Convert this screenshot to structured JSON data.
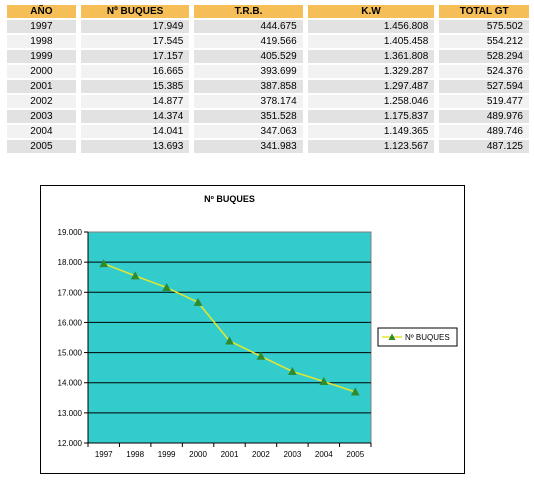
{
  "table": {
    "headers": [
      "AÑO",
      "Nº BUQUES",
      "T.R.B.",
      "K.W",
      "TOTAL GT"
    ],
    "rows": [
      [
        "1997",
        "17.949",
        "444.675",
        "1.456.808",
        "575.502"
      ],
      [
        "1998",
        "17.545",
        "419.566",
        "1.405.458",
        "554.212"
      ],
      [
        "1999",
        "17.157",
        "405.529",
        "1.361.808",
        "528.294"
      ],
      [
        "2000",
        "16.665",
        "393.699",
        "1.329.287",
        "524.376"
      ],
      [
        "2001",
        "15.385",
        "387.858",
        "1.297.487",
        "527.594"
      ],
      [
        "2002",
        "14.877",
        "378.174",
        "1.258.046",
        "519.477"
      ],
      [
        "2003",
        "14.374",
        "351.528",
        "1.175.837",
        "489.976"
      ],
      [
        "2004",
        "14.041",
        "347.063",
        "1.149.365",
        "489.746"
      ],
      [
        "2005",
        "13.693",
        "341.983",
        "1.123.567",
        "487.125"
      ]
    ]
  },
  "chart_data": {
    "type": "line",
    "title": "Nº BUQUES",
    "xlabel": "",
    "ylabel": "",
    "categories": [
      "1997",
      "1998",
      "1999",
      "2000",
      "2001",
      "2002",
      "2003",
      "2004",
      "2005"
    ],
    "series": [
      {
        "name": "Nº BUQUES",
        "values": [
          17949,
          17545,
          17157,
          16665,
          15385,
          14877,
          14374,
          14041,
          13693
        ]
      }
    ],
    "ylim": [
      12000,
      19000
    ],
    "ytick_labels": [
      "19.000",
      "18.000",
      "17.000",
      "16.000",
      "15.000",
      "14.000",
      "13.000",
      "12.000"
    ],
    "grid": true,
    "legend_position": "right",
    "colors": {
      "plot_background": "#33CCCC",
      "line": "#E6E62E",
      "marker": "#2E8B2E",
      "header": "#F5BE57"
    }
  }
}
